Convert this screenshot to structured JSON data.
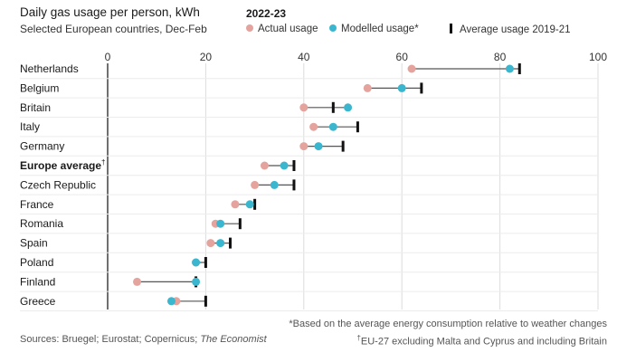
{
  "header": {
    "title": "Daily gas usage per person, kWh",
    "subtitle": "Selected European countries, Dec-Feb"
  },
  "legend": {
    "title": "2022-23",
    "actual": "Actual usage",
    "modelled": "Modelled usage*",
    "average": "Average usage 2019-21"
  },
  "colors": {
    "actual": "#e5a39e",
    "modelled": "#3ab7cf",
    "average": "#111111",
    "connector": "#555555",
    "grid": "#dcdcdc"
  },
  "footnotes": {
    "modelled": "*Based on the average energy consumption relative to weather changes",
    "europe": "EU-27 excluding Malta and Cyprus and including Britain",
    "dagger": "†"
  },
  "source": {
    "prefix": "Sources: Bruegel; Eurostat; Copernicus;",
    "publication": "The Economist"
  },
  "chart_data": {
    "type": "dot",
    "title": "Daily gas usage per person, kWh",
    "subtitle": "Selected European countries, Dec-Feb",
    "xlim": [
      0,
      100
    ],
    "xticks": [
      0,
      20,
      40,
      60,
      80,
      100
    ],
    "grid": true,
    "legend_position": "top",
    "categories": [
      "Netherlands",
      "Belgium",
      "Britain",
      "Italy",
      "Germany",
      "Europe average",
      "Czech Republic",
      "France",
      "Romania",
      "Spain",
      "Poland",
      "Finland",
      "Greece"
    ],
    "highlight": "Europe average",
    "series": [
      {
        "name": "Actual usage",
        "values": [
          62,
          53,
          40,
          42,
          40,
          32,
          30,
          26,
          22,
          21,
          18,
          6,
          14
        ]
      },
      {
        "name": "Modelled usage*",
        "values": [
          82,
          60,
          49,
          46,
          43,
          36,
          34,
          29,
          23,
          23,
          18,
          18,
          13
        ]
      },
      {
        "name": "Average usage 2019-21",
        "values": [
          84,
          64,
          46,
          51,
          48,
          38,
          38,
          30,
          27,
          25,
          20,
          18,
          20
        ]
      }
    ]
  }
}
